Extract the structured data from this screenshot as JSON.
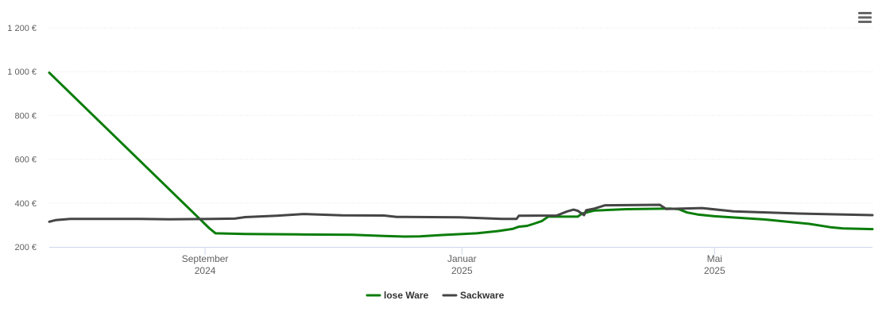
{
  "colors": {
    "lose_ware": "#0a7d0a",
    "sackware": "#454545",
    "grid": "#e6e6e6",
    "axis": "#ccd6eb",
    "menu_icon": "#666666"
  },
  "menu": {
    "icon": "hamburger-menu-icon"
  },
  "chart_data": {
    "type": "line",
    "title": "",
    "xlabel": "",
    "ylabel": "",
    "ylim": [
      200,
      1200
    ],
    "yticks": [
      200,
      400,
      600,
      800,
      1000,
      1200
    ],
    "ytick_labels": [
      "200 €",
      "400 €",
      "600 €",
      "800 €",
      "1 000 €",
      "1 200 €"
    ],
    "xlim": [
      "2024-06-19",
      "2025-07-15"
    ],
    "xticks": [
      {
        "date": "2024-09-01",
        "line1": "September",
        "line2": "2024"
      },
      {
        "date": "2025-01-01",
        "line1": "Januar",
        "line2": "2025"
      },
      {
        "date": "2025-05-01",
        "line1": "Mai",
        "line2": "2025"
      }
    ],
    "grid": true,
    "legend_position": "bottom-center",
    "series": [
      {
        "name": "lose Ware",
        "color": "#0a7d0a",
        "points": [
          [
            "2024-06-19",
            995
          ],
          [
            "2024-09-03",
            285
          ],
          [
            "2024-09-06",
            262
          ],
          [
            "2024-09-20",
            259
          ],
          [
            "2024-10-15",
            257
          ],
          [
            "2024-11-10",
            255
          ],
          [
            "2024-11-25",
            250
          ],
          [
            "2024-12-05",
            247
          ],
          [
            "2024-12-12",
            248
          ],
          [
            "2024-12-22",
            254
          ],
          [
            "2025-01-08",
            262
          ],
          [
            "2025-01-18",
            272
          ],
          [
            "2025-01-25",
            282
          ],
          [
            "2025-01-28",
            292
          ],
          [
            "2025-02-01",
            296
          ],
          [
            "2025-02-04",
            305
          ],
          [
            "2025-02-08",
            318
          ],
          [
            "2025-02-11",
            338
          ],
          [
            "2025-02-20",
            338
          ],
          [
            "2025-02-25",
            338
          ],
          [
            "2025-02-27",
            352
          ],
          [
            "2025-03-05",
            366
          ],
          [
            "2025-03-20",
            372
          ],
          [
            "2025-04-10",
            375
          ],
          [
            "2025-04-14",
            372
          ],
          [
            "2025-04-18",
            357
          ],
          [
            "2025-04-23",
            348
          ],
          [
            "2025-05-01",
            340
          ],
          [
            "2025-05-25",
            325
          ],
          [
            "2025-06-15",
            305
          ],
          [
            "2025-06-25",
            290
          ],
          [
            "2025-07-01",
            284
          ],
          [
            "2025-07-15",
            281
          ]
        ]
      },
      {
        "name": "Sackware",
        "color": "#454545",
        "points": [
          [
            "2024-06-19",
            315
          ],
          [
            "2024-06-22",
            322
          ],
          [
            "2024-06-29",
            328
          ],
          [
            "2024-07-15",
            328
          ],
          [
            "2024-08-01",
            328
          ],
          [
            "2024-08-15",
            326
          ],
          [
            "2024-09-01",
            327
          ],
          [
            "2024-09-15",
            329
          ],
          [
            "2024-09-20",
            336
          ],
          [
            "2024-10-05",
            342
          ],
          [
            "2024-10-18",
            350
          ],
          [
            "2024-11-05",
            344
          ],
          [
            "2024-11-25",
            343
          ],
          [
            "2024-12-01",
            337
          ],
          [
            "2024-12-31",
            335
          ],
          [
            "2025-01-20",
            328
          ],
          [
            "2025-01-27",
            328
          ],
          [
            "2025-01-28",
            342
          ],
          [
            "2025-02-15",
            343
          ],
          [
            "2025-02-20",
            362
          ],
          [
            "2025-02-23",
            370
          ],
          [
            "2025-02-25",
            365
          ],
          [
            "2025-02-28",
            345
          ],
          [
            "2025-03-01",
            367
          ],
          [
            "2025-03-05",
            375
          ],
          [
            "2025-03-10",
            390
          ],
          [
            "2025-04-05",
            392
          ],
          [
            "2025-04-08",
            373
          ],
          [
            "2025-04-25",
            377
          ],
          [
            "2025-05-10",
            362
          ],
          [
            "2025-06-10",
            352
          ],
          [
            "2025-07-15",
            345
          ]
        ]
      }
    ]
  }
}
